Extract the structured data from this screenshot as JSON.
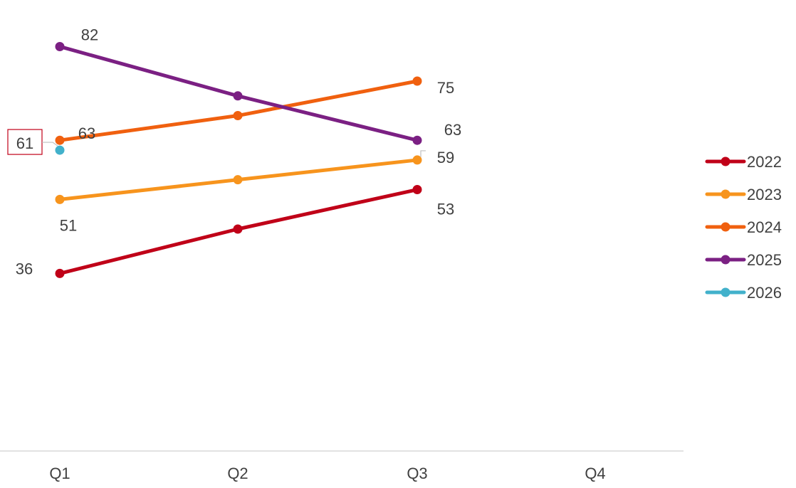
{
  "chart_data": {
    "type": "line",
    "categories": [
      "Q1",
      "Q2",
      "Q3",
      "Q4"
    ],
    "series": [
      {
        "name": "2022",
        "color": "#C00018",
        "values": [
          36,
          45,
          53,
          null
        ]
      },
      {
        "name": "2023",
        "color": "#F7941D",
        "values": [
          51,
          55,
          59,
          null
        ]
      },
      {
        "name": "2024",
        "color": "#F0600F",
        "values": [
          63,
          68,
          75,
          null
        ]
      },
      {
        "name": "2025",
        "color": "#7B2083",
        "values": [
          82,
          72,
          63,
          null
        ]
      },
      {
        "name": "2026",
        "color": "#42B1CB",
        "values": [
          61,
          null,
          null,
          null
        ]
      }
    ],
    "data_labels": [
      {
        "series": "2022",
        "category": "Q1",
        "text": "36"
      },
      {
        "series": "2022",
        "category": "Q3",
        "text": "53"
      },
      {
        "series": "2023",
        "category": "Q1",
        "text": "51"
      },
      {
        "series": "2023",
        "category": "Q3",
        "text": "59"
      },
      {
        "series": "2024",
        "category": "Q1",
        "text": "63"
      },
      {
        "series": "2024",
        "category": "Q3",
        "text": "75"
      },
      {
        "series": "2025",
        "category": "Q1",
        "text": "82"
      },
      {
        "series": "2025",
        "category": "Q3",
        "text": "63"
      },
      {
        "series": "2026",
        "category": "Q1",
        "text": "61"
      }
    ],
    "ylim": [
      0,
      90
    ],
    "grid": false,
    "legend_position": "right",
    "title": "",
    "xlabel": "",
    "ylabel": ""
  }
}
